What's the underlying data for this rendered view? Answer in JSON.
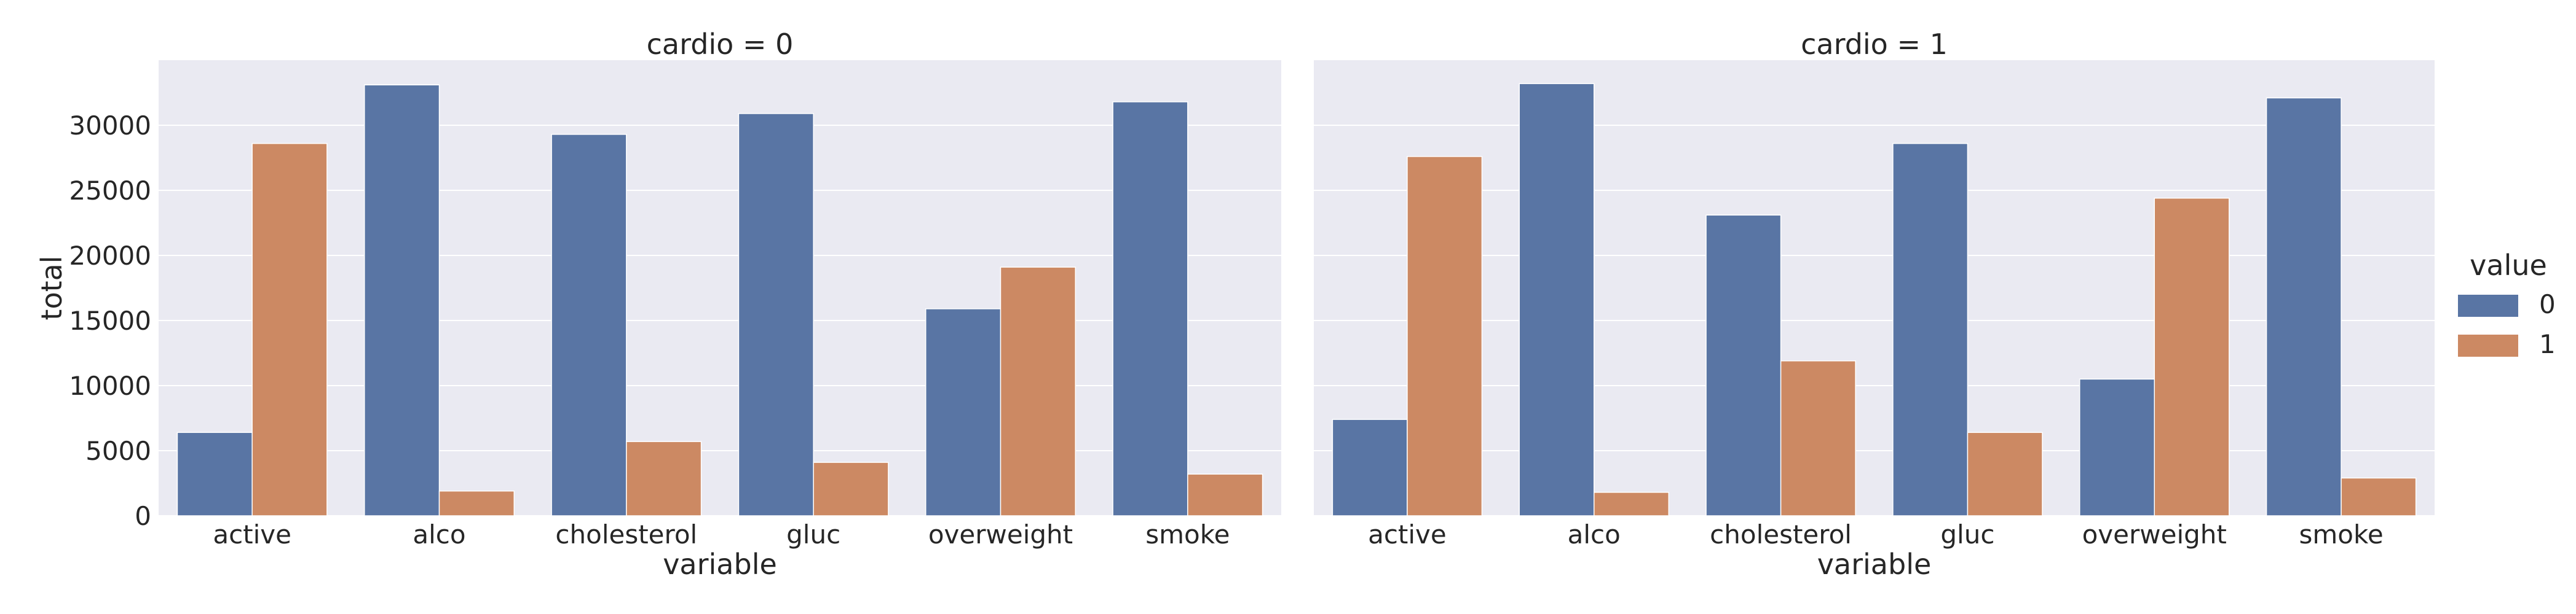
{
  "chart_data": {
    "type": "bar",
    "ylabel": "total",
    "ylim": [
      0,
      35000
    ],
    "yticks": [
      0,
      5000,
      10000,
      15000,
      20000,
      25000,
      30000
    ],
    "grid": true,
    "legend": {
      "title": "value",
      "placement": "right",
      "entries": [
        {
          "label": "0",
          "color": "#5975a4"
        },
        {
          "label": "1",
          "color": "#cc8963"
        }
      ]
    },
    "facets": [
      {
        "title": "cardio = 0",
        "xlabel": "variable",
        "categories": [
          "active",
          "alco",
          "cholesterol",
          "gluc",
          "overweight",
          "smoke"
        ],
        "series": [
          {
            "name": "0",
            "values": [
              6400,
              33100,
              29300,
              30900,
              15900,
              31800
            ]
          },
          {
            "name": "1",
            "values": [
              28600,
              1900,
              5700,
              4100,
              19100,
              3200
            ]
          }
        ]
      },
      {
        "title": "cardio = 1",
        "xlabel": "variable",
        "categories": [
          "active",
          "alco",
          "cholesterol",
          "gluc",
          "overweight",
          "smoke"
        ],
        "series": [
          {
            "name": "0",
            "values": [
              7400,
              33200,
              23100,
              28600,
              10500,
              32100
            ]
          },
          {
            "name": "1",
            "values": [
              27600,
              1800,
              11900,
              6400,
              24400,
              2900
            ]
          }
        ]
      }
    ]
  }
}
